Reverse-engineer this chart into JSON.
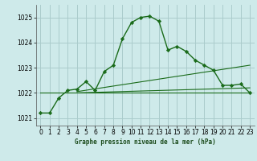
{
  "title": "Graphe pression niveau de la mer (hPa)",
  "bg_color": "#ceeaea",
  "grid_color": "#aacccc",
  "line_color": "#1a6b1a",
  "marker_color": "#1a6b1a",
  "xlim": [
    -0.5,
    23.5
  ],
  "ylim": [
    1020.7,
    1025.5
  ],
  "yticks": [
    1021,
    1022,
    1023,
    1024,
    1025
  ],
  "xticks": [
    0,
    1,
    2,
    3,
    4,
    5,
    6,
    7,
    8,
    9,
    10,
    11,
    12,
    13,
    14,
    15,
    16,
    17,
    18,
    19,
    20,
    21,
    22,
    23
  ],
  "main_series": {
    "x": [
      0,
      1,
      2,
      3,
      4,
      5,
      6,
      7,
      8,
      9,
      10,
      11,
      12,
      13,
      14,
      15,
      16,
      17,
      18,
      19,
      20,
      21,
      22,
      23
    ],
    "y": [
      1021.2,
      1021.2,
      1021.8,
      1022.1,
      1022.15,
      1022.45,
      1022.1,
      1022.85,
      1023.1,
      1024.15,
      1024.8,
      1025.0,
      1025.05,
      1024.85,
      1023.7,
      1023.85,
      1023.65,
      1023.3,
      1023.1,
      1022.9,
      1022.3,
      1022.3,
      1022.35,
      1022.0
    ]
  },
  "flat_line": {
    "x": [
      0,
      23
    ],
    "y": [
      1022.0,
      1022.0
    ]
  },
  "trend_line2": {
    "x": [
      4,
      23
    ],
    "y": [
      1022.0,
      1022.2
    ]
  },
  "trend_line3": {
    "x": [
      4,
      23
    ],
    "y": [
      1022.05,
      1023.1
    ]
  }
}
